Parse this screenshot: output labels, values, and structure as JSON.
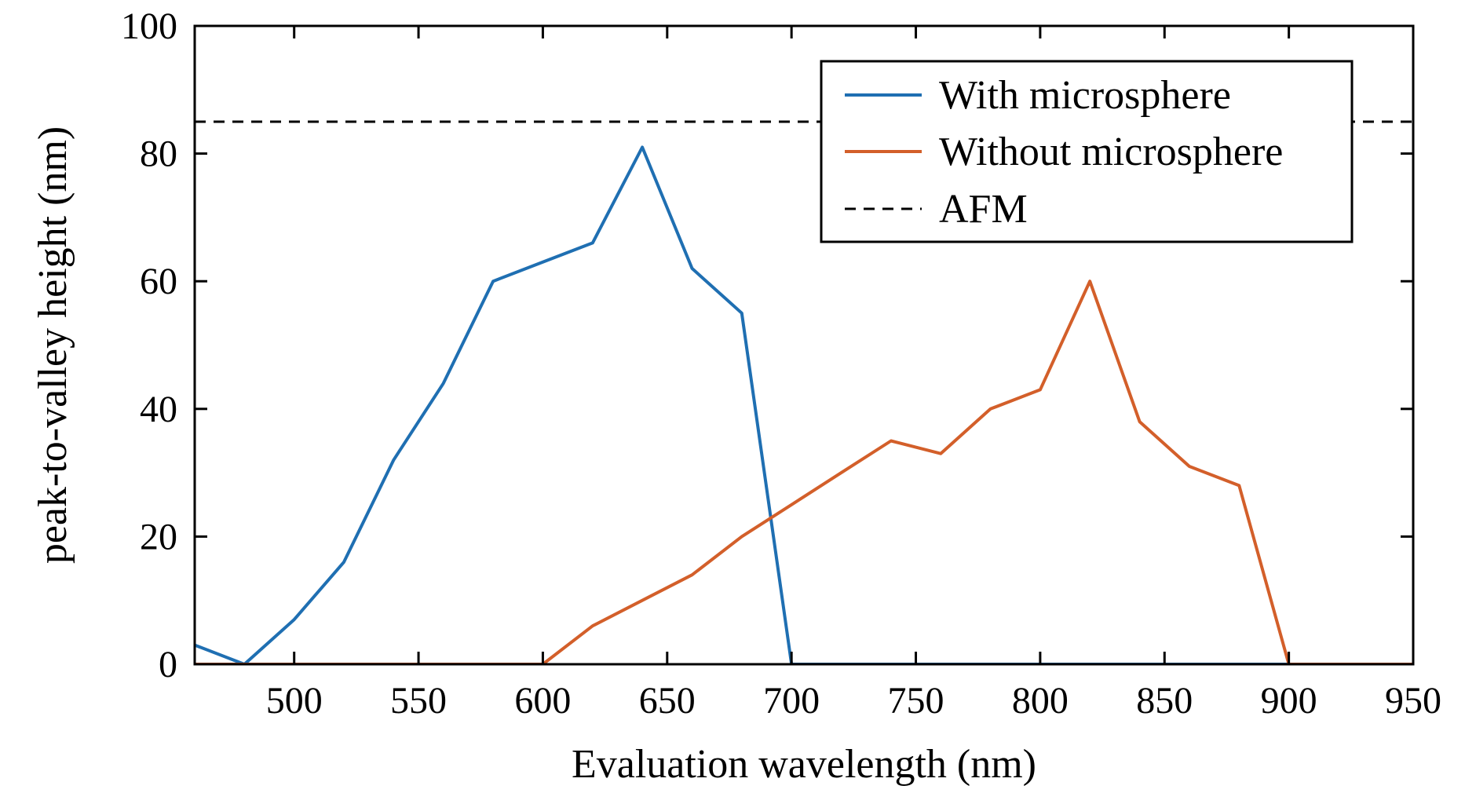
{
  "chart_data": {
    "type": "line",
    "title": "",
    "xlabel": "Evaluation wavelength (nm)",
    "ylabel": "peak-to-valley height (nm)",
    "xlim": [
      460,
      950
    ],
    "ylim": [
      0,
      100
    ],
    "xticks": [
      500,
      550,
      600,
      650,
      700,
      750,
      800,
      850,
      900,
      950
    ],
    "yticks": [
      0,
      20,
      40,
      60,
      80,
      100
    ],
    "grid": false,
    "legend_position": "top-right",
    "series": [
      {
        "name": "With microsphere",
        "color": "#1f6fb2",
        "style": "solid",
        "x": [
          460,
          480,
          500,
          520,
          540,
          560,
          580,
          600,
          620,
          640,
          660,
          680,
          700,
          720,
          740,
          760,
          780,
          800,
          820,
          840,
          860,
          880,
          900,
          920,
          940,
          950
        ],
        "y": [
          3,
          0,
          7,
          16,
          32,
          44,
          60,
          63,
          66,
          81,
          62,
          55,
          0,
          0,
          0,
          0,
          0,
          0,
          0,
          0,
          0,
          0,
          0,
          0,
          0,
          0
        ]
      },
      {
        "name": "Without microsphere",
        "color": "#d35f2a",
        "style": "solid",
        "x": [
          460,
          480,
          500,
          520,
          540,
          560,
          580,
          600,
          620,
          640,
          660,
          680,
          700,
          720,
          740,
          760,
          780,
          800,
          820,
          840,
          860,
          880,
          900,
          920,
          940,
          950
        ],
        "y": [
          0,
          0,
          0,
          0,
          0,
          0,
          0,
          0,
          6,
          10,
          14,
          20,
          25,
          30,
          35,
          33,
          40,
          43,
          60,
          38,
          31,
          28,
          0,
          0,
          0,
          0
        ]
      },
      {
        "name": "AFM",
        "color": "#000000",
        "style": "dashed",
        "x": [
          460,
          950
        ],
        "y": [
          85,
          85
        ]
      }
    ]
  }
}
